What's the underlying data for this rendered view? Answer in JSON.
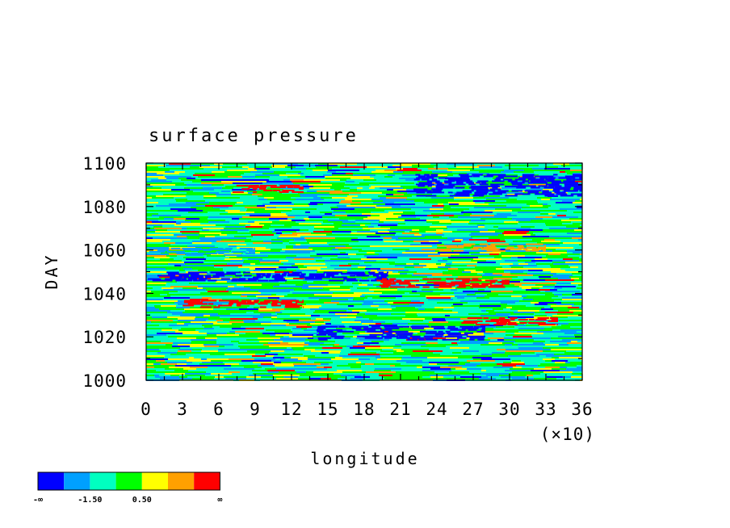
{
  "chart_data": {
    "type": "heatmap",
    "title": "surface pressure",
    "xlabel": "longitude",
    "ylabel": "DAY",
    "x_multiplier_label": "(×10)",
    "xlim": [
      0,
      36
    ],
    "ylim": [
      1000,
      1100
    ],
    "x_ticks": [
      "0",
      "3",
      "6",
      "9",
      "12",
      "15",
      "18",
      "21",
      "24",
      "27",
      "30",
      "33",
      "36"
    ],
    "y_ticks": [
      "1000",
      "1020",
      "1040",
      "1060",
      "1080",
      "1100"
    ],
    "colorbar": {
      "colors": [
        "#0000ff",
        "#00a0ff",
        "#00ffc0",
        "#00ff00",
        "#ffff00",
        "#ffa000",
        "#ff0000"
      ],
      "labels": [
        "-∞",
        "-1.50",
        "0.50",
        "∞"
      ]
    },
    "features": [
      {
        "x": [
          0,
          20
        ],
        "y": [
          1046,
          1050
        ],
        "level": 0
      },
      {
        "x": [
          22,
          36
        ],
        "y": [
          1085,
          1095
        ],
        "level": 0
      },
      {
        "x": [
          14,
          28
        ],
        "y": [
          1019,
          1025
        ],
        "level": 0
      },
      {
        "x": [
          0,
          9
        ],
        "y": [
          1058,
          1061
        ],
        "level": 1
      },
      {
        "x": [
          19,
          30
        ],
        "y": [
          1043,
          1047
        ],
        "level": 6
      },
      {
        "x": [
          3,
          13
        ],
        "y": [
          1034,
          1037
        ],
        "level": 6
      },
      {
        "x": [
          24,
          33
        ],
        "y": [
          1060,
          1063
        ],
        "level": 5
      },
      {
        "x": [
          26,
          34
        ],
        "y": [
          1026,
          1029
        ],
        "level": 6
      },
      {
        "x": [
          7,
          13
        ],
        "y": [
          1087,
          1090
        ],
        "level": 6
      }
    ]
  }
}
